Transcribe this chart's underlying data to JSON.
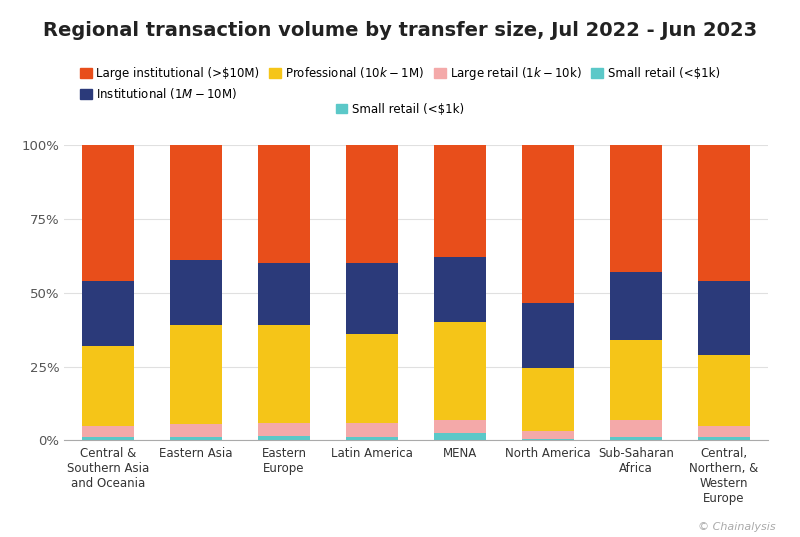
{
  "title": "Regional transaction volume by transfer size, Jul 2022 - Jun 2023",
  "categories": [
    "Central &\nSouthern Asia\nand Oceania",
    "Eastern Asia",
    "Eastern\nEurope",
    "Latin America",
    "MENA",
    "North America",
    "Sub-Saharan\nAfrica",
    "Central,\nNorthern, &\nWestern\nEurope"
  ],
  "segments": [
    {
      "label": "Small retail (<$1k)",
      "color": "#5bc8c8",
      "values": [
        1.0,
        1.0,
        1.5,
        1.0,
        2.5,
        0.5,
        1.0,
        1.0
      ]
    },
    {
      "label": "Large retail ($1k-$10k)",
      "color": "#f4a9a9",
      "values": [
        4.0,
        4.5,
        4.5,
        5.0,
        4.5,
        2.5,
        6.0,
        4.0
      ]
    },
    {
      "label": "Professional ($10k-$1M)",
      "color": "#f5c518",
      "values": [
        27.0,
        33.5,
        33.0,
        30.0,
        33.0,
        21.5,
        27.0,
        24.0
      ]
    },
    {
      "label": "Institutional ($1M-$10M)",
      "color": "#2b3a7a",
      "values": [
        22.0,
        22.0,
        21.0,
        24.0,
        22.0,
        22.0,
        23.0,
        25.0
      ]
    },
    {
      "label": "Large institutional (>$10M)",
      "color": "#e84e1b",
      "values": [
        46.0,
        39.0,
        40.0,
        40.0,
        38.0,
        53.5,
        43.0,
        46.0
      ]
    }
  ],
  "legend_order": [
    4,
    3,
    2,
    1,
    0
  ],
  "yticks": [
    0,
    25,
    50,
    75,
    100
  ],
  "ytick_labels": [
    "0%",
    "25%",
    "50%",
    "75%",
    "100%"
  ],
  "background_color": "#ffffff",
  "grid_color": "#e0e0e0",
  "watermark": "© Chainalysis",
  "bar_width": 0.6,
  "title_fontsize": 14,
  "legend_fontsize": 8.5,
  "tick_fontsize": 9.5
}
